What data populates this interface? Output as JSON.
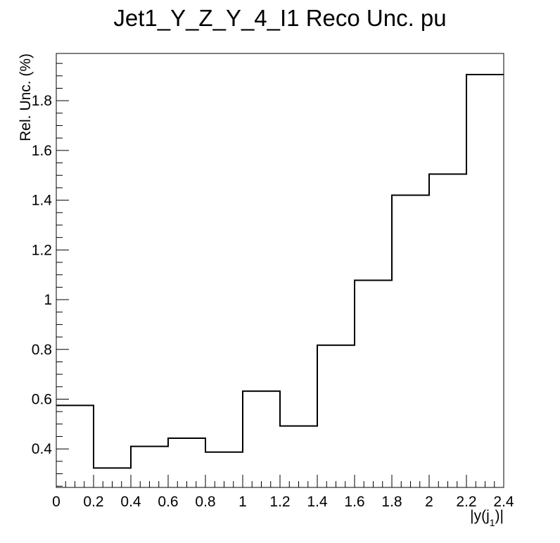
{
  "chart_data": {
    "type": "step",
    "title": "Jet1_Y_Z_Y_4_I1 Reco Unc. pu",
    "xlabel": "|y(j_1)|",
    "xlabel_parts": {
      "pre": "|y(j",
      "sub": "1",
      "post": ")|"
    },
    "ylabel": "Rel. Unc. (%)",
    "xlim": [
      0,
      2.4
    ],
    "ylim": [
      0.245,
      1.99
    ],
    "x_ticks": [
      0,
      0.2,
      0.4,
      0.6,
      0.8,
      1,
      1.2,
      1.4,
      1.6,
      1.8,
      2,
      2.2,
      2.4
    ],
    "x_tick_labels": [
      "0",
      "0.2",
      "0.4",
      "0.6",
      "0.8",
      "1",
      "1.2",
      "1.4",
      "1.6",
      "1.8",
      "2",
      "2.2",
      "2.4"
    ],
    "y_ticks": [
      0.4,
      0.6,
      0.8,
      1.0,
      1.2,
      1.4,
      1.6,
      1.8
    ],
    "y_tick_labels": [
      "0.4",
      "0.6",
      "0.8",
      "1",
      "1.2",
      "1.4",
      "1.6",
      "1.8"
    ],
    "bin_edges": [
      0,
      0.2,
      0.4,
      0.6,
      0.8,
      1.0,
      1.2,
      1.4,
      1.6,
      1.8,
      2.0,
      2.2,
      2.4
    ],
    "values": [
      0.575,
      0.323,
      0.41,
      0.443,
      0.387,
      0.632,
      0.492,
      0.817,
      1.078,
      1.42,
      1.505,
      1.905
    ],
    "grid": false,
    "legend": "none"
  }
}
